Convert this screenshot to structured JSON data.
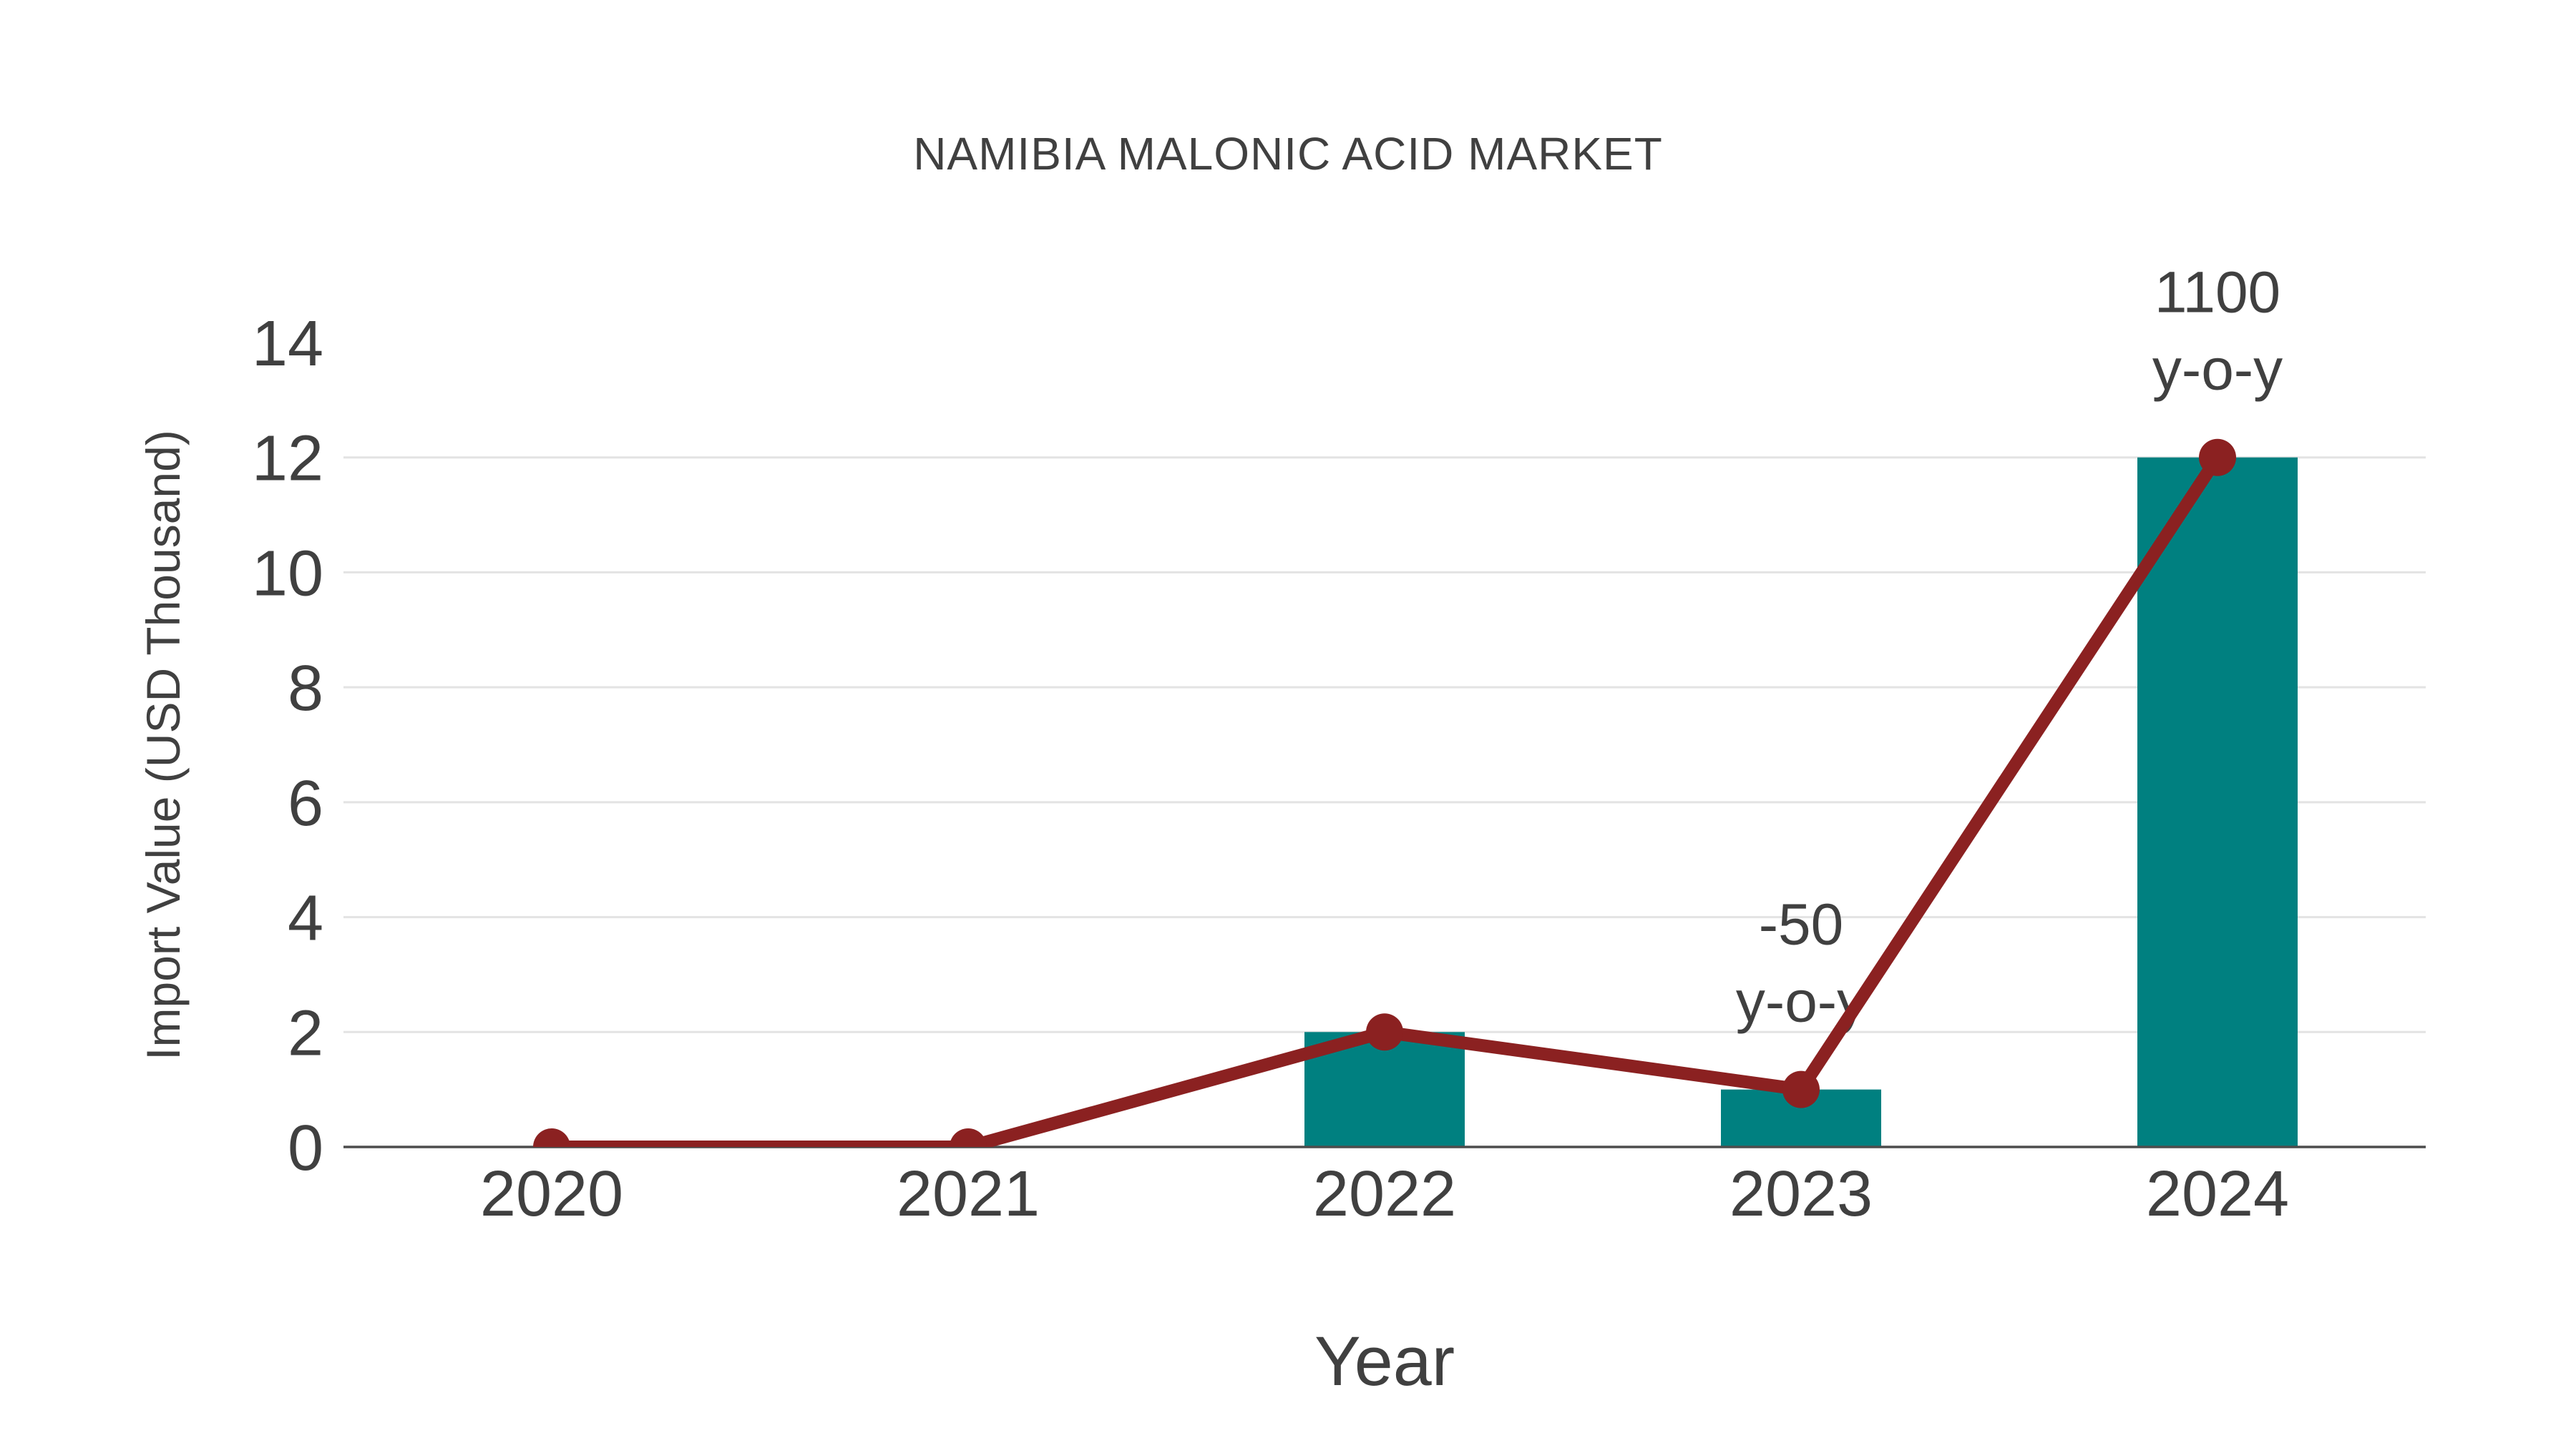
{
  "chart_data": {
    "type": "bar+line",
    "title": "NAMIBIA MALONIC ACID MARKET",
    "xlabel": "Year",
    "ylabel": "Import Value (USD Thousand)",
    "categories": [
      "2020",
      "2021",
      "2022",
      "2023",
      "2024"
    ],
    "series": [
      {
        "name": "import-value-bar",
        "type": "bar",
        "values": [
          0,
          0,
          2,
          1,
          12
        ]
      },
      {
        "name": "import-value-line",
        "type": "line",
        "values": [
          0,
          0,
          2,
          1,
          12
        ]
      }
    ],
    "annotations": [
      {
        "category": "2023",
        "lines": [
          "-50",
          "y-o-y"
        ]
      },
      {
        "category": "2024",
        "lines": [
          "1100",
          "y-o-y"
        ]
      }
    ],
    "ylim": [
      0,
      14
    ],
    "yticks": [
      0,
      2,
      4,
      6,
      8,
      10,
      12,
      14
    ],
    "grid_ticks": [
      2,
      4,
      6,
      8,
      10,
      12
    ],
    "legend": "none",
    "colors": {
      "bar": "#008080",
      "line": "#8b2121",
      "text": "#404040",
      "grid": "#e3e3e3",
      "axis": "#4d4d4d",
      "background": "#ffffff"
    }
  }
}
